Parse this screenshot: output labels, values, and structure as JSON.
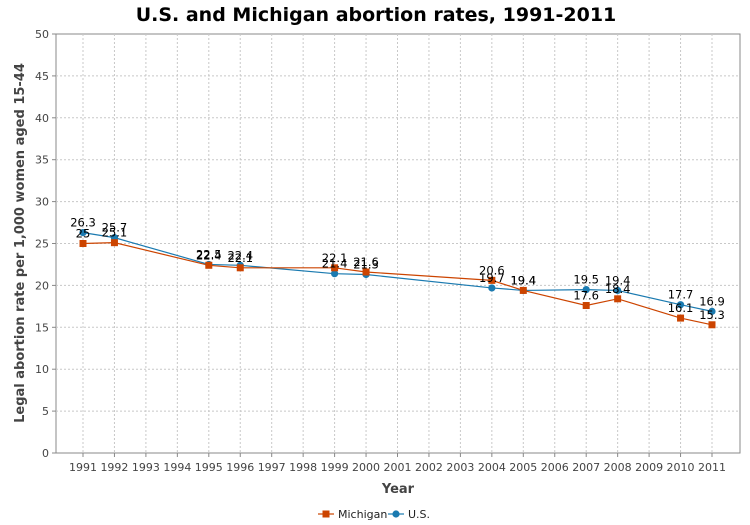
{
  "chart_data": {
    "type": "line",
    "title": "U.S. and Michigan abortion rates, 1991-2011",
    "xlabel": "Year",
    "ylabel": "Legal abortion rate per 1,000 women aged 15-44",
    "ylim": [
      0,
      50
    ],
    "yticks": [
      0,
      5,
      10,
      15,
      20,
      25,
      30,
      35,
      40,
      45,
      50
    ],
    "categories": [
      "1991",
      "1992",
      "1993",
      "1994",
      "1995",
      "1996",
      "1997",
      "1998",
      "1999",
      "2000",
      "2001",
      "2002",
      "2003",
      "2004",
      "2005",
      "2006",
      "2007",
      "2008",
      "2009",
      "2010",
      "2011"
    ],
    "grid": true,
    "legend_position": "bottom",
    "series": [
      {
        "name": "Michigan",
        "color": "#cc4400",
        "marker": "square",
        "points": [
          {
            "x": "1991",
            "y": 25
          },
          {
            "x": "1992",
            "y": 25.1
          },
          {
            "x": "1995",
            "y": 22.4
          },
          {
            "x": "1996",
            "y": 22.1
          },
          {
            "x": "1999",
            "y": 22.1
          },
          {
            "x": "2000",
            "y": 21.6
          },
          {
            "x": "2004",
            "y": 20.6
          },
          {
            "x": "2005",
            "y": 19.4
          },
          {
            "x": "2007",
            "y": 17.6
          },
          {
            "x": "2008",
            "y": 18.4
          },
          {
            "x": "2010",
            "y": 16.1
          },
          {
            "x": "2011",
            "y": 15.3
          }
        ]
      },
      {
        "name": "U.S.",
        "color": "#1a7ab0",
        "marker": "circle",
        "points": [
          {
            "x": "1991",
            "y": 26.3
          },
          {
            "x": "1992",
            "y": 25.7
          },
          {
            "x": "1995",
            "y": 22.5
          },
          {
            "x": "1996",
            "y": 22.4
          },
          {
            "x": "1999",
            "y": 21.4
          },
          {
            "x": "2000",
            "y": 21.3
          },
          {
            "x": "2004",
            "y": 19.7
          },
          {
            "x": "2005",
            "y": 19.4
          },
          {
            "x": "2007",
            "y": 19.5
          },
          {
            "x": "2008",
            "y": 19.4
          },
          {
            "x": "2010",
            "y": 17.7
          },
          {
            "x": "2011",
            "y": 16.9
          }
        ]
      }
    ]
  },
  "labels": {
    "michigan": [
      "25",
      "25.1",
      "22.4",
      "22.1",
      "22.1",
      "21.6",
      "20.6",
      "19.4",
      "17.6",
      "18.4",
      "16.1",
      "15.3"
    ],
    "us": [
      "26.3",
      "25.7",
      "22.5",
      "22.4",
      "21.4",
      "21.3",
      "19.7",
      "19.4",
      "19.5",
      "19.4",
      "17.7",
      "16.9"
    ]
  }
}
